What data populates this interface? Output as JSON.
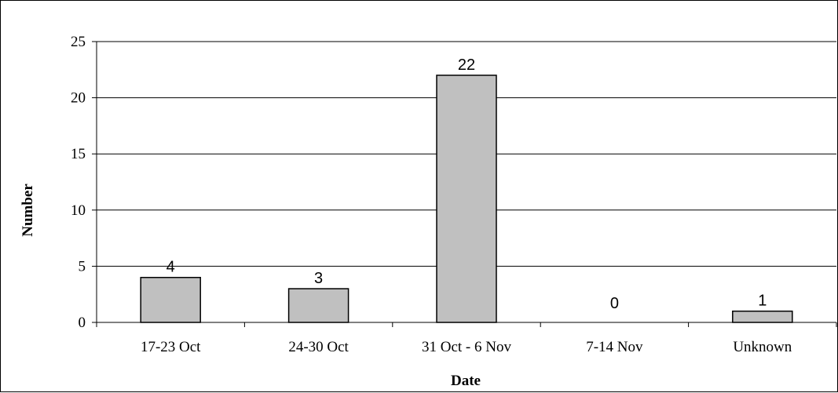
{
  "chart_data": {
    "type": "bar",
    "title": "",
    "xlabel": "Date",
    "ylabel": "Number",
    "categories": [
      "17-23 Oct",
      "24-30 Oct",
      "31 Oct - 6 Nov",
      "7-14 Nov",
      "Unknown"
    ],
    "values": [
      4,
      3,
      22,
      0,
      1
    ],
    "data_labels": [
      "4",
      "3",
      "22",
      "0",
      "1"
    ],
    "ylim": [
      0,
      25
    ],
    "yticks": [
      0,
      5,
      10,
      15,
      20,
      25
    ],
    "grid": true,
    "legend": "none",
    "colors": {
      "bar_fill": "#c0c0c0",
      "bar_stroke": "#000000",
      "grid": "#000000"
    }
  }
}
